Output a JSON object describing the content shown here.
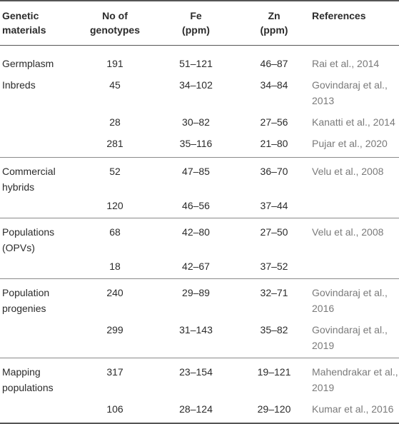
{
  "headers": {
    "material": [
      "Genetic",
      "materials"
    ],
    "genotypes": [
      "No of",
      "genotypes"
    ],
    "fe": [
      "Fe",
      "(ppm)"
    ],
    "zn": [
      "Zn",
      "(ppm)"
    ],
    "references": "References"
  },
  "rows": [
    {
      "material": "Germplasm",
      "genotypes": "191",
      "fe": "51–121",
      "zn": "46–87",
      "reference": "Rai et al., 2014"
    },
    {
      "material": "Inbreds",
      "genotypes": "45",
      "fe": "34–102",
      "zn": "34–84",
      "reference": "Govindaraj et al., 2013"
    },
    {
      "material": "",
      "genotypes": "28",
      "fe": "30–82",
      "zn": "27–56",
      "reference": "Kanatti et al., 2014"
    },
    {
      "material": "",
      "genotypes": "281",
      "fe": "35–116",
      "zn": "21–80",
      "reference": "Pujar et al., 2020"
    },
    {
      "material": "Commercial hybrids",
      "genotypes": "52",
      "fe": "47–85",
      "zn": "36–70",
      "reference": "Velu et al., 2008"
    },
    {
      "material": "",
      "genotypes": "120",
      "fe": "46–56",
      "zn": "37–44",
      "reference": ""
    },
    {
      "material": "Populations (OPVs)",
      "genotypes": "68",
      "fe": "42–80",
      "zn": "27–50",
      "reference": "Velu et al., 2008"
    },
    {
      "material": "",
      "genotypes": "18",
      "fe": "42–67",
      "zn": "37–52",
      "reference": ""
    },
    {
      "material": "Population progenies",
      "genotypes": "240",
      "fe": "29–89",
      "zn": "32–71",
      "reference": "Govindaraj et al., 2016"
    },
    {
      "material": "",
      "genotypes": "299",
      "fe": "31–143",
      "zn": "35–82",
      "reference": "Govindaraj et al., 2019"
    },
    {
      "material": "Mapping populations",
      "genotypes": "317",
      "fe": "23–154",
      "zn": "19–121",
      "reference": "Mahendrakar et al., 2019"
    },
    {
      "material": "",
      "genotypes": "106",
      "fe": "28–124",
      "zn": "29–120",
      "reference": "Kumar et al., 2016"
    }
  ]
}
